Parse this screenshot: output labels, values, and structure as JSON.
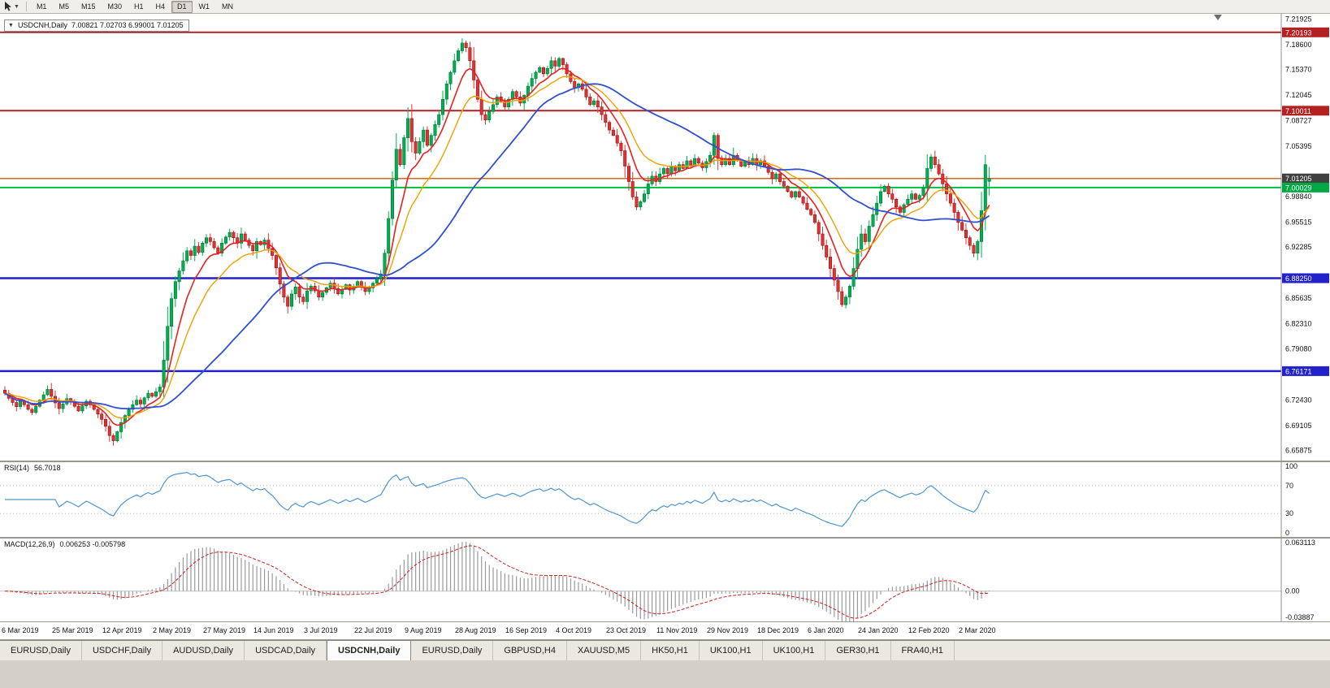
{
  "toolbar": {
    "timeframes": [
      "M1",
      "M5",
      "M15",
      "M30",
      "H1",
      "H4",
      "D1",
      "W1",
      "MN"
    ],
    "active": "D1"
  },
  "chart_header": {
    "symbol_period": "USDCNH,Daily",
    "ohlc": "7.00821 7.02703 6.99001 7.01205"
  },
  "price_axis": {
    "labels": [
      {
        "text": "7.21925",
        "value": 7.21925
      },
      {
        "text": "7.18600",
        "value": 7.186
      },
      {
        "text": "7.15370",
        "value": 7.1537
      },
      {
        "text": "7.12045",
        "value": 7.12045
      },
      {
        "text": "7.08727",
        "value": 7.08727
      },
      {
        "text": "7.05395",
        "value": 7.05395
      },
      {
        "text": "6.98840",
        "value": 6.9884
      },
      {
        "text": "6.95515",
        "value": 6.95515
      },
      {
        "text": "6.92285",
        "value": 6.92285
      },
      {
        "text": "6.85635",
        "value": 6.85635
      },
      {
        "text": "6.82310",
        "value": 6.8231
      },
      {
        "text": "6.79080",
        "value": 6.7908
      },
      {
        "text": "6.72430",
        "value": 6.7243
      },
      {
        "text": "6.69105",
        "value": 6.69105
      },
      {
        "text": "6.65875",
        "value": 6.65875
      }
    ]
  },
  "levels": [
    {
      "label": "7.20193",
      "value": 7.20193,
      "color": "#b22222",
      "line_color": "#b22222",
      "width": 2
    },
    {
      "label": "7.10011",
      "value": 7.10011,
      "color": "#b22222",
      "line_color": "#b22222",
      "width": 2
    },
    {
      "label": "7.01205",
      "value": 7.01205,
      "color": "#404040",
      "line_color": "#d2691e",
      "width": 1.5
    },
    {
      "label": "7.00029",
      "value": 7.00029,
      "color": "#00a844",
      "line_color": "#00c040",
      "width": 2
    },
    {
      "label": "6.88250",
      "value": 6.8825,
      "color": "#2222cc",
      "line_color": "#2222cc",
      "width": 2.5
    },
    {
      "label": "6.76171",
      "value": 6.76171,
      "color": "#2222cc",
      "line_color": "#2222cc",
      "width": 2.5
    }
  ],
  "rsi": {
    "label": "RSI(14)",
    "value": "56.7018",
    "scale": [
      {
        "text": "100",
        "value": 100
      },
      {
        "text": "70",
        "value": 70
      },
      {
        "text": "30",
        "value": 30
      },
      {
        "text": "0",
        "value": 0
      }
    ]
  },
  "macd": {
    "label": "MACD(12,26,9)",
    "value": "0.006253 -0.005798",
    "scale": [
      {
        "text": "0.063113",
        "value": 0.063113
      },
      {
        "text": "0.00",
        "value": 0
      },
      {
        "text": "-0.03887",
        "value": -0.03887
      }
    ]
  },
  "date_axis": {
    "x_start": 2,
    "x_step": 62
  },
  "tabs": {
    "active_index": 4,
    "items": [
      "EURUSD,Daily",
      "USDCHF,Daily",
      "AUDUSD,Daily",
      "USDCAD,Daily",
      "USDCNH,Daily",
      "EURUSD,Daily",
      "GBPUSD,H4",
      "XAUUSD,M5",
      "HK50,H1",
      "UK100,H1",
      "UK100,H1",
      "GER30,H1",
      "FRA40,H1"
    ]
  },
  "chart_data": {
    "type": "candlestick",
    "symbol": "USDCNH",
    "period": "Daily",
    "x_first": 6,
    "x_step": 4.77,
    "y_range": [
      6.6455,
      7.226
    ],
    "x_tick_labels": [
      "6 Mar 2019",
      "25 Mar 2019",
      "12 Apr 2019",
      "2 May 2019",
      "27 May 2019",
      "14 Jun 2019",
      "3 Jul 2019",
      "22 Jul 2019",
      "9 Aug 2019",
      "28 Aug 2019",
      "16 Sep 2019",
      "4 Oct 2019",
      "23 Oct 2019",
      "11 Nov 2019",
      "29 Nov 2019",
      "18 Dec 2019",
      "6 Jan 2020",
      "24 Jan 2020",
      "12 Feb 2020",
      "2 Mar 2020"
    ],
    "last_ohlc": {
      "open": 7.00821,
      "high": 7.02703,
      "low": 6.99001,
      "close": 7.01205
    },
    "up_color": "#00b050",
    "up_border": "#007434",
    "down_color": "#e03232",
    "down_border": "#941414",
    "ma": [
      {
        "period": 8,
        "type": "ema",
        "color": "#e82020",
        "width": 1.6
      },
      {
        "period": 16,
        "type": "ema",
        "color": "#f0a000",
        "width": 1.4
      },
      {
        "period": 40,
        "type": "sma",
        "color": "#3050d0",
        "width": 1.8
      }
    ],
    "rsi_period": 14,
    "rsi_color": "#4e96d2",
    "macd_cfg": {
      "fast": 12,
      "slow": 26,
      "signal": 9,
      "hist_color": "#9a9a9a",
      "signal_color": "#d02020",
      "y_range": [
        -0.0389,
        0.0675
      ]
    },
    "closes": [
      6.733,
      6.7265,
      6.721,
      6.7155,
      6.7225,
      6.718,
      6.712,
      6.708,
      6.716,
      6.724,
      6.731,
      6.738,
      6.729,
      6.7205,
      6.713,
      6.719,
      6.726,
      6.722,
      6.716,
      6.71,
      6.7165,
      6.7225,
      6.718,
      6.712,
      6.706,
      6.699,
      6.69,
      6.678,
      6.6712,
      6.683,
      6.695,
      6.704,
      6.712,
      6.718,
      6.724,
      6.719,
      6.727,
      6.733,
      6.729,
      6.735,
      6.741,
      6.776,
      6.82,
      6.856,
      6.878,
      6.892,
      6.905,
      6.918,
      6.912,
      6.924,
      6.916,
      6.928,
      6.935,
      6.93,
      6.922,
      6.915,
      6.928,
      6.936,
      6.942,
      6.935,
      6.928,
      6.94,
      6.932,
      6.925,
      6.918,
      6.93,
      6.926,
      6.932,
      6.921,
      6.912,
      6.896,
      6.875,
      6.858,
      6.846,
      6.862,
      6.871,
      6.858,
      6.852,
      6.866,
      6.872,
      6.866,
      6.858,
      6.864,
      6.87,
      6.876,
      6.869,
      6.862,
      6.868,
      6.874,
      6.867,
      6.872,
      6.878,
      6.871,
      6.865,
      6.87,
      6.876,
      6.882,
      6.888,
      6.915,
      6.96,
      7.01,
      7.05,
      7.03,
      7.065,
      7.09,
      7.06,
      7.045,
      7.06,
      7.075,
      7.055,
      7.068,
      7.082,
      7.095,
      7.115,
      7.135,
      7.15,
      7.165,
      7.178,
      7.188,
      7.182,
      7.165,
      7.14,
      7.115,
      7.095,
      7.088,
      7.099,
      7.108,
      7.118,
      7.112,
      7.105,
      7.115,
      7.125,
      7.118,
      7.11,
      7.12,
      7.132,
      7.142,
      7.15,
      7.156,
      7.148,
      7.155,
      7.165,
      7.158,
      7.168,
      7.16,
      7.148,
      7.138,
      7.13,
      7.135,
      7.128,
      7.118,
      7.108,
      7.113,
      7.105,
      7.095,
      7.085,
      7.075,
      7.068,
      7.058,
      7.048,
      7.028,
      7.008,
      6.988,
      6.975,
      6.982,
      6.992,
      7.005,
      7.015,
      7.008,
      7.018,
      7.025,
      7.018,
      7.028,
      7.022,
      7.03,
      7.025,
      7.035,
      7.028,
      7.038,
      7.032,
      7.026,
      7.034,
      7.042,
      7.068,
      7.038,
      7.03,
      7.038,
      7.03,
      7.042,
      7.035,
      7.028,
      7.035,
      7.03,
      7.038,
      7.03,
      7.035,
      7.028,
      7.02,
      7.012,
      7.018,
      7.008,
      7.002,
      6.995,
      6.988,
      6.995,
      6.988,
      6.98,
      6.972,
      6.965,
      6.955,
      6.94,
      6.925,
      6.91,
      6.895,
      6.88,
      6.865,
      6.848,
      6.858,
      6.872,
      6.895,
      6.92,
      6.94,
      6.93,
      6.95,
      6.965,
      6.98,
      6.995,
      7.002,
      6.992,
      6.985,
      6.975,
      6.968,
      6.978,
      6.985,
      6.992,
      6.985,
      6.99,
      7.0,
      7.025,
      7.04,
      7.03,
      7.018,
      7.005,
      6.992,
      6.98,
      6.968,
      6.955,
      6.945,
      6.935,
      6.925,
      6.915,
      6.93,
      6.97,
      7.03,
      7.0121
    ]
  }
}
